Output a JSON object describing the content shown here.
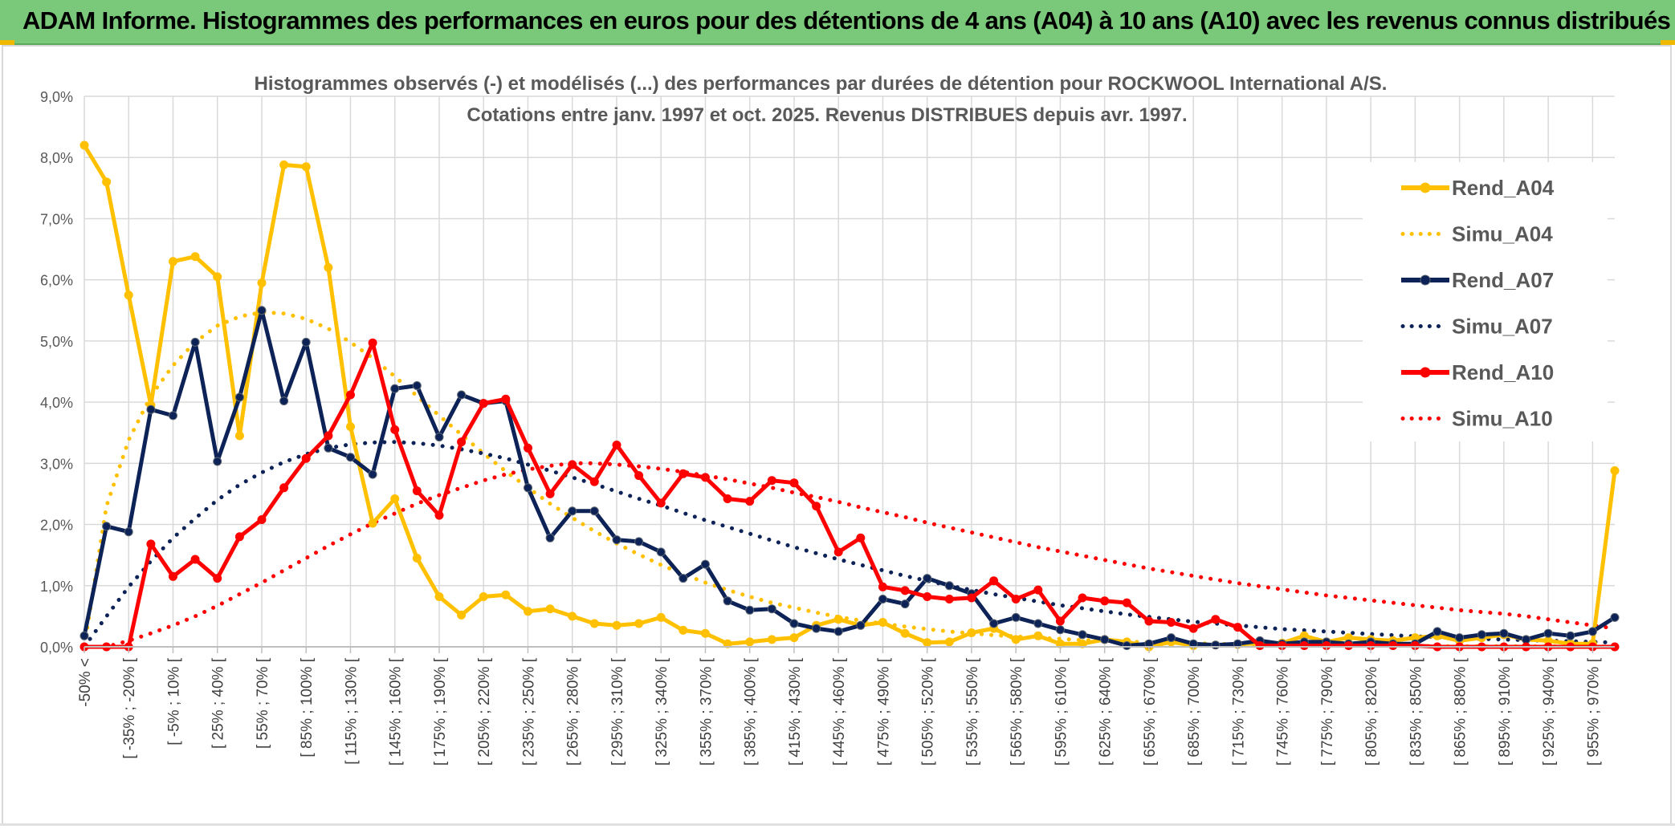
{
  "banner": {
    "title": "ADAM Informe. Histogrammes des performances en euros pour des détentions de 4 ans (A04) à 10 ans (A10) avec les revenus connus distribués"
  },
  "colors": {
    "banner_bg": "#7ac87a",
    "rend_a04": "#ffc000",
    "rend_a07": "#0d2357",
    "rend_a10": "#ff0000",
    "grid": "#d9d9d9"
  },
  "chart_data": {
    "type": "line",
    "title_line1": "Histogrammes observés (-) et modélisés (...) des performances par durées de détention pour ROCKWOOL International A/S.",
    "title_line2": "Cotations entre janv. 1997 et oct. 2025. Revenus DISTRIBUES depuis avr. 1997.",
    "ylim": [
      0,
      9
    ],
    "y_ticks": [
      "0,0%",
      "1,0%",
      "2,0%",
      "3,0%",
      "4,0%",
      "5,0%",
      "6,0%",
      "7,0%",
      "8,0%",
      "9,0%"
    ],
    "grid": true,
    "legend_position": "top-right",
    "x_tick_labels": [
      "-50% <",
      "[ -35% ; -20% [",
      "[ -5% ; 10% [",
      "[ 25% ; 40% [",
      "[ 55% ; 70% [",
      "[ 85% ; 100% [",
      "[ 115% ; 130% [",
      "[ 145% ; 160% [",
      "[ 175% ; 190% [",
      "[ 205% ; 220% [",
      "[ 235% ; 250% [",
      "[ 265% ; 280% [",
      "[ 295% ; 310% [",
      "[ 325% ; 340% [",
      "[ 355% ; 370% [",
      "[ 385% ; 400% [",
      "[ 415% ; 430% [",
      "[ 445% ; 460% [",
      "[ 475% ; 490% [",
      "[ 505% ; 520% [",
      "[ 535% ; 550% [",
      "[ 565% ; 580% [",
      "[ 595% ; 610% [",
      "[ 625% ; 640% [",
      "[ 655% ; 670% [",
      "[ 685% ; 700% [",
      "[ 715% ; 730% [",
      "[ 745% ; 760% [",
      "[ 775% ; 790% [",
      "[ 805% ; 820% [",
      "[ 835% ; 850% [",
      "[ 865% ; 880% [",
      "[ 895% ; 910% [",
      "[ 925% ; 940% [",
      "[ 955% ; 970% ["
    ],
    "series": [
      {
        "name": "Rend_A04",
        "color": "#ffc000",
        "style": "solid",
        "markers": true,
        "values": [
          8.2,
          7.6,
          5.75,
          3.95,
          6.3,
          6.38,
          6.05,
          3.45,
          5.95,
          7.88,
          7.85,
          6.2,
          3.6,
          2.02,
          2.42,
          1.45,
          0.82,
          0.52,
          0.82,
          0.85,
          0.58,
          0.62,
          0.5,
          0.38,
          0.35,
          0.38,
          0.48,
          0.27,
          0.22,
          0.05,
          0.08,
          0.12,
          0.15,
          0.35,
          0.45,
          0.35,
          0.4,
          0.22,
          0.07,
          0.08,
          0.23,
          0.3,
          0.12,
          0.18,
          0.05,
          0.05,
          0.12,
          0.08,
          0.0,
          0.08,
          0.02,
          0.03,
          0.04,
          0.06,
          0.06,
          0.18,
          0.08,
          0.15,
          0.12,
          0.1,
          0.15,
          0.18,
          0.1,
          0.15,
          0.2,
          0.12,
          0.1,
          0.05,
          0.05,
          2.88
        ]
      },
      {
        "name": "Simu_A04",
        "color": "#ffc000",
        "style": "dotted",
        "markers": false,
        "values": [
          0.0,
          2.3,
          3.38,
          4.1,
          4.6,
          4.98,
          5.25,
          5.4,
          5.47,
          5.45,
          5.36,
          5.2,
          4.98,
          4.72,
          4.42,
          4.1,
          3.78,
          3.47,
          3.16,
          2.87,
          2.6,
          2.34,
          2.11,
          1.89,
          1.69,
          1.51,
          1.34,
          1.19,
          1.05,
          0.93,
          0.82,
          0.72,
          0.64,
          0.56,
          0.49,
          0.43,
          0.38,
          0.33,
          0.29,
          0.25,
          0.22,
          0.19,
          0.17,
          0.15,
          0.13,
          0.11,
          0.1,
          0.09,
          0.07,
          0.07,
          0.06,
          0.05,
          0.04,
          0.04,
          0.03,
          0.03,
          0.03,
          0.02,
          0.02,
          0.02,
          0.02,
          0.01,
          0.01,
          0.01,
          0.01,
          0.01,
          0.01,
          0.01,
          0.01,
          0.0
        ]
      },
      {
        "name": "Rend_A07",
        "color": "#0d2357",
        "style": "solid",
        "markers": true,
        "values": [
          0.18,
          1.97,
          1.88,
          3.88,
          3.78,
          4.98,
          3.03,
          4.08,
          5.5,
          4.02,
          4.98,
          3.25,
          3.1,
          2.82,
          4.22,
          4.27,
          3.43,
          4.12,
          3.98,
          4.02,
          2.6,
          1.78,
          2.22,
          2.22,
          1.75,
          1.72,
          1.55,
          1.12,
          1.35,
          0.75,
          0.6,
          0.62,
          0.38,
          0.3,
          0.25,
          0.35,
          0.78,
          0.7,
          1.12,
          1.0,
          0.87,
          0.38,
          0.48,
          0.38,
          0.28,
          0.2,
          0.12,
          0.02,
          0.05,
          0.15,
          0.05,
          0.03,
          0.05,
          0.1,
          0.05,
          0.08,
          0.08,
          0.05,
          0.08,
          0.05,
          0.05,
          0.25,
          0.15,
          0.2,
          0.22,
          0.12,
          0.22,
          0.18,
          0.25,
          0.48
        ]
      },
      {
        "name": "Simu_A07",
        "color": "#0d2357",
        "style": "dotted",
        "markers": false,
        "values": [
          0.0,
          0.5,
          0.98,
          1.4,
          1.78,
          2.1,
          2.4,
          2.65,
          2.85,
          3.02,
          3.15,
          3.25,
          3.31,
          3.34,
          3.35,
          3.33,
          3.29,
          3.23,
          3.16,
          3.08,
          2.98,
          2.88,
          2.77,
          2.66,
          2.54,
          2.42,
          2.31,
          2.19,
          2.07,
          1.96,
          1.85,
          1.74,
          1.63,
          1.53,
          1.43,
          1.34,
          1.25,
          1.16,
          1.08,
          1.0,
          0.93,
          0.86,
          0.8,
          0.74,
          0.68,
          0.63,
          0.58,
          0.53,
          0.49,
          0.45,
          0.41,
          0.38,
          0.35,
          0.32,
          0.29,
          0.27,
          0.25,
          0.23,
          0.21,
          0.19,
          0.17,
          0.16,
          0.14,
          0.13,
          0.12,
          0.11,
          0.1,
          0.09,
          0.08,
          0.07
        ]
      },
      {
        "name": "Rend_A10",
        "color": "#ff0000",
        "style": "solid",
        "markers": true,
        "values": [
          0.0,
          0.0,
          0.0,
          1.68,
          1.15,
          1.43,
          1.12,
          1.8,
          2.08,
          2.6,
          3.08,
          3.45,
          4.12,
          4.97,
          3.55,
          2.55,
          2.15,
          3.35,
          3.98,
          4.05,
          3.25,
          2.5,
          2.98,
          2.7,
          3.3,
          2.8,
          2.35,
          2.83,
          2.77,
          2.42,
          2.38,
          2.72,
          2.68,
          2.3,
          1.55,
          1.78,
          0.98,
          0.92,
          0.82,
          0.78,
          0.8,
          1.08,
          0.78,
          0.93,
          0.42,
          0.8,
          0.75,
          0.72,
          0.42,
          0.4,
          0.3,
          0.45,
          0.32,
          0.02,
          0.02,
          0.02,
          0.02,
          0.02,
          0.02,
          0.02,
          0.02,
          0.0,
          0.0,
          0.0,
          0.0,
          0.0,
          0.0,
          0.0,
          0.0,
          0.0
        ]
      },
      {
        "name": "Simu_A10",
        "color": "#ff0000",
        "style": "dotted",
        "markers": false,
        "values": [
          0.0,
          0.0,
          0.1,
          0.22,
          0.35,
          0.5,
          0.67,
          0.86,
          1.05,
          1.25,
          1.45,
          1.65,
          1.84,
          2.02,
          2.18,
          2.34,
          2.48,
          2.6,
          2.72,
          2.82,
          2.9,
          2.96,
          3.0,
          3.0,
          2.98,
          2.95,
          2.91,
          2.86,
          2.8,
          2.74,
          2.67,
          2.6,
          2.52,
          2.45,
          2.37,
          2.28,
          2.2,
          2.12,
          2.03,
          1.95,
          1.87,
          1.79,
          1.71,
          1.63,
          1.56,
          1.49,
          1.42,
          1.35,
          1.28,
          1.22,
          1.16,
          1.1,
          1.04,
          0.99,
          0.94,
          0.89,
          0.84,
          0.8,
          0.76,
          0.72,
          0.68,
          0.64,
          0.6,
          0.57,
          0.54,
          0.5,
          0.45,
          0.4,
          0.35,
          0.3
        ]
      }
    ]
  }
}
